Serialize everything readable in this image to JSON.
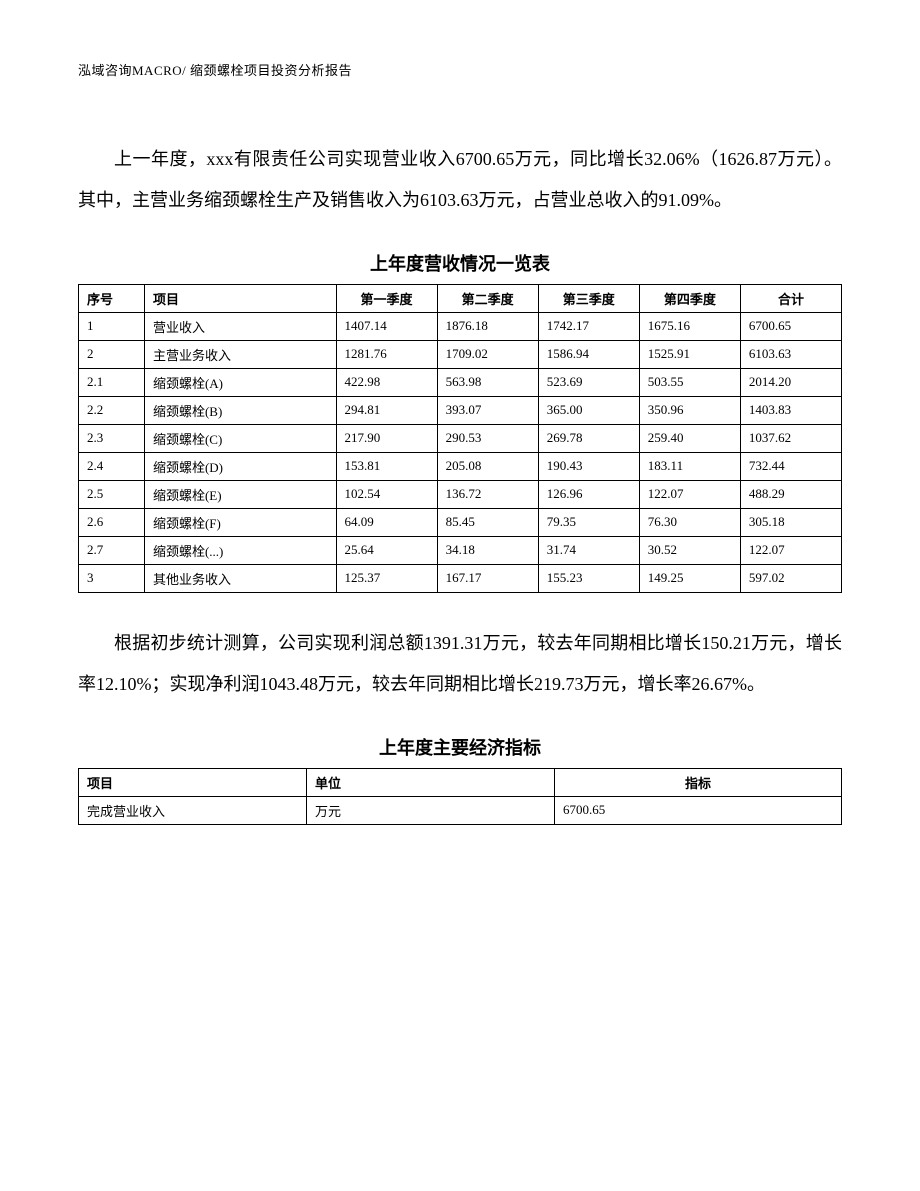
{
  "header": {
    "company": "泓域咨询MACRO/",
    "title": "缩颈螺栓项目投资分析报告"
  },
  "paragraph1": "上一年度，xxx有限责任公司实现营业收入6700.65万元，同比增长32.06%（1626.87万元）。其中，主营业务缩颈螺栓生产及销售收入为6103.63万元，占营业总收入的91.09%。",
  "table1": {
    "title": "上年度营收情况一览表",
    "headers": {
      "seq": "序号",
      "item": "项目",
      "q1": "第一季度",
      "q2": "第二季度",
      "q3": "第三季度",
      "q4": "第四季度",
      "total": "合计"
    },
    "rows": [
      {
        "seq": "1",
        "item": "营业收入",
        "q1": "1407.14",
        "q2": "1876.18",
        "q3": "1742.17",
        "q4": "1675.16",
        "total": "6700.65"
      },
      {
        "seq": "2",
        "item": "主营业务收入",
        "q1": "1281.76",
        "q2": "1709.02",
        "q3": "1586.94",
        "q4": "1525.91",
        "total": "6103.63"
      },
      {
        "seq": "2.1",
        "item": "缩颈螺栓(A)",
        "q1": "422.98",
        "q2": "563.98",
        "q3": "523.69",
        "q4": "503.55",
        "total": "2014.20"
      },
      {
        "seq": "2.2",
        "item": "缩颈螺栓(B)",
        "q1": "294.81",
        "q2": "393.07",
        "q3": "365.00",
        "q4": "350.96",
        "total": "1403.83"
      },
      {
        "seq": "2.3",
        "item": "缩颈螺栓(C)",
        "q1": "217.90",
        "q2": "290.53",
        "q3": "269.78",
        "q4": "259.40",
        "total": "1037.62"
      },
      {
        "seq": "2.4",
        "item": "缩颈螺栓(D)",
        "q1": "153.81",
        "q2": "205.08",
        "q3": "190.43",
        "q4": "183.11",
        "total": "732.44"
      },
      {
        "seq": "2.5",
        "item": "缩颈螺栓(E)",
        "q1": "102.54",
        "q2": "136.72",
        "q3": "126.96",
        "q4": "122.07",
        "total": "488.29"
      },
      {
        "seq": "2.6",
        "item": "缩颈螺栓(F)",
        "q1": "64.09",
        "q2": "85.45",
        "q3": "79.35",
        "q4": "76.30",
        "total": "305.18"
      },
      {
        "seq": "2.7",
        "item": "缩颈螺栓(...)",
        "q1": "25.64",
        "q2": "34.18",
        "q3": "31.74",
        "q4": "30.52",
        "total": "122.07"
      },
      {
        "seq": "3",
        "item": "其他业务收入",
        "q1": "125.37",
        "q2": "167.17",
        "q3": "155.23",
        "q4": "149.25",
        "total": "597.02"
      }
    ]
  },
  "paragraph2": "根据初步统计测算，公司实现利润总额1391.31万元，较去年同期相比增长150.21万元，增长率12.10%；实现净利润1043.48万元，较去年同期相比增长219.73万元，增长率26.67%。",
  "table2": {
    "title": "上年度主要经济指标",
    "headers": {
      "item": "项目",
      "unit": "单位",
      "index": "指标"
    },
    "rows": [
      {
        "item": "完成营业收入",
        "unit": "万元",
        "index": "6700.65"
      }
    ]
  }
}
